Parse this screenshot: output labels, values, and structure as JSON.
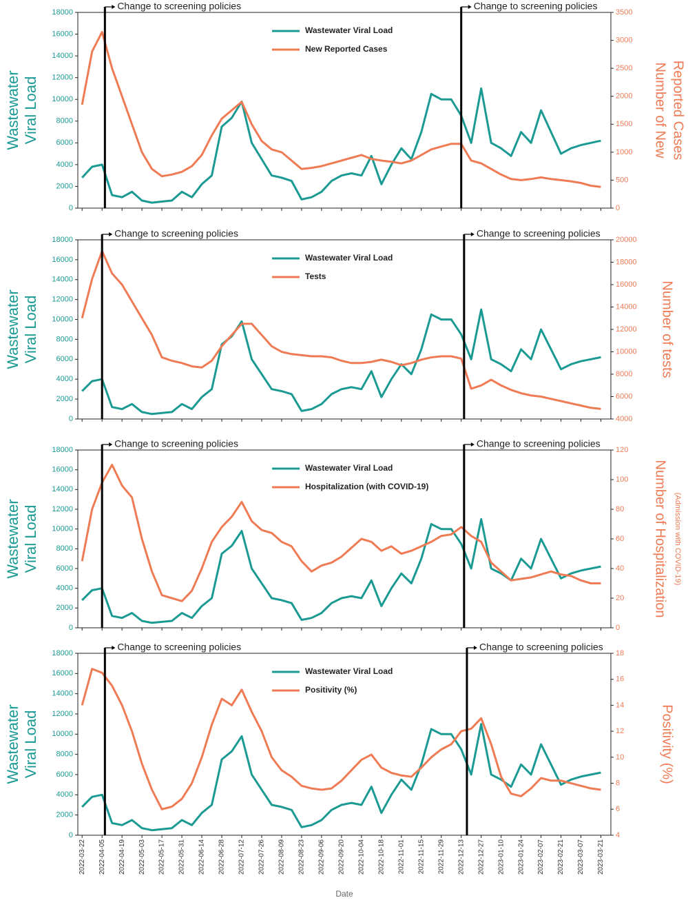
{
  "chart_data": [
    {
      "type": "line",
      "x": [
        "2022-03-22",
        "2022-03-29",
        "2022-04-05",
        "2022-04-12",
        "2022-04-19",
        "2022-04-26",
        "2022-05-03",
        "2022-05-10",
        "2022-05-17",
        "2022-05-24",
        "2022-05-31",
        "2022-06-07",
        "2022-06-14",
        "2022-06-21",
        "2022-06-28",
        "2022-07-05",
        "2022-07-12",
        "2022-07-19",
        "2022-07-26",
        "2022-08-02",
        "2022-08-09",
        "2022-08-16",
        "2022-08-23",
        "2022-08-30",
        "2022-09-06",
        "2022-09-13",
        "2022-09-20",
        "2022-09-27",
        "2022-10-04",
        "2022-10-11",
        "2022-10-18",
        "2022-10-25",
        "2022-11-01",
        "2022-11-08",
        "2022-11-15",
        "2022-11-22",
        "2022-11-29",
        "2022-12-06",
        "2022-12-13",
        "2022-12-20",
        "2022-12-27",
        "2023-01-03",
        "2023-01-10",
        "2023-01-17",
        "2023-01-24",
        "2023-01-31",
        "2023-02-07",
        "2023-02-14",
        "2023-02-21",
        "2023-02-28",
        "2023-03-07",
        "2023-03-14",
        "2023-03-21"
      ],
      "xlim": [
        "2022-03-19",
        "2023-03-28"
      ],
      "xticks": [
        "2022-03-22",
        "2022-04-05",
        "2022-04-19",
        "2022-05-03",
        "2022-05-17",
        "2022-05-31",
        "2022-06-14",
        "2022-06-28",
        "2022-07-12",
        "2022-07-26",
        "2022-08-09",
        "2022-08-23",
        "2022-09-06",
        "2022-09-20",
        "2022-10-04",
        "2022-10-18",
        "2022-11-01",
        "2022-11-15",
        "2022-11-29",
        "2022-12-13",
        "2022-12-27",
        "2023-01-10",
        "2023-01-24",
        "2023-02-07",
        "2023-02-21",
        "2023-03-07",
        "2023-03-21"
      ],
      "ylabel": [
        "Wastewater",
        "Viral Load"
      ],
      "y2label": [
        "Number of New",
        "Reported Cases"
      ],
      "ylim": [
        0,
        18000
      ],
      "yticks": [
        0,
        2000,
        4000,
        6000,
        8000,
        10000,
        12000,
        14000,
        16000,
        18000
      ],
      "y2lim": [
        0,
        3500
      ],
      "y2ticks": [
        0,
        500,
        1000,
        1500,
        2000,
        2500,
        3000,
        3500
      ],
      "legend": "top",
      "annotations": [
        {
          "x": "2022-04-07",
          "text": "Change to screening policies"
        },
        {
          "x": "2022-12-13",
          "text": "Change to screening policies"
        }
      ],
      "series": [
        {
          "name": "Wastewater Viral Load",
          "color": "#1a9a93",
          "values": [
            2800,
            3800,
            4000,
            1200,
            1000,
            1500,
            700,
            500,
            600,
            700,
            1500,
            1000,
            2200,
            3000,
            7500,
            8300,
            9800,
            6000,
            4500,
            3000,
            2800,
            2500,
            800,
            1000,
            1500,
            2500,
            3000,
            3200,
            3000,
            4800,
            2200,
            4000,
            5500,
            4500,
            7000,
            10500,
            10000,
            10000,
            8500,
            6000,
            11000,
            6000,
            5500,
            4800,
            7000,
            6000,
            9000,
            7000,
            5000,
            5500,
            5800,
            6000,
            6200
          ]
        },
        {
          "name": "New Reported Cases",
          "color": "#ef7b55",
          "axis": "y2",
          "values": [
            1850,
            2800,
            3150,
            2500,
            2000,
            1500,
            1000,
            700,
            570,
            600,
            650,
            750,
            950,
            1300,
            1600,
            1750,
            1900,
            1500,
            1200,
            1050,
            1000,
            850,
            700,
            720,
            750,
            800,
            850,
            900,
            950,
            880,
            850,
            830,
            800,
            850,
            950,
            1050,
            1100,
            1150,
            1150,
            850,
            800,
            700,
            600,
            520,
            500,
            520,
            550,
            520,
            500,
            480,
            450,
            400,
            380
          ]
        }
      ]
    },
    {
      "type": "line",
      "x": [
        "2022-03-22",
        "2022-03-29",
        "2022-04-05",
        "2022-04-12",
        "2022-04-19",
        "2022-04-26",
        "2022-05-03",
        "2022-05-10",
        "2022-05-17",
        "2022-05-24",
        "2022-05-31",
        "2022-06-07",
        "2022-06-14",
        "2022-06-21",
        "2022-06-28",
        "2022-07-05",
        "2022-07-12",
        "2022-07-19",
        "2022-07-26",
        "2022-08-02",
        "2022-08-09",
        "2022-08-16",
        "2022-08-23",
        "2022-08-30",
        "2022-09-06",
        "2022-09-13",
        "2022-09-20",
        "2022-09-27",
        "2022-10-04",
        "2022-10-11",
        "2022-10-18",
        "2022-10-25",
        "2022-11-01",
        "2022-11-08",
        "2022-11-15",
        "2022-11-22",
        "2022-11-29",
        "2022-12-06",
        "2022-12-13",
        "2022-12-20",
        "2022-12-27",
        "2023-01-03",
        "2023-01-10",
        "2023-01-17",
        "2023-01-24",
        "2023-01-31",
        "2023-02-07",
        "2023-02-14",
        "2023-02-21",
        "2023-02-28",
        "2023-03-07",
        "2023-03-14",
        "2023-03-21"
      ],
      "xlim": [
        "2022-03-19",
        "2023-03-28"
      ],
      "xticks": [
        "2022-03-22",
        "2022-04-05",
        "2022-04-19",
        "2022-05-03",
        "2022-05-17",
        "2022-05-31",
        "2022-06-14",
        "2022-06-28",
        "2022-07-12",
        "2022-07-26",
        "2022-08-09",
        "2022-08-23",
        "2022-09-06",
        "2022-09-20",
        "2022-10-04",
        "2022-10-18",
        "2022-11-01",
        "2022-11-15",
        "2022-11-29",
        "2022-12-13",
        "2022-12-27",
        "2023-01-10",
        "2023-01-24",
        "2023-02-07",
        "2023-02-21",
        "2023-03-07",
        "2023-03-21"
      ],
      "ylabel": [
        "Wastewater",
        "Viral Load"
      ],
      "y2label": [
        "Number of tests"
      ],
      "ylim": [
        0,
        18000
      ],
      "yticks": [
        0,
        2000,
        4000,
        6000,
        8000,
        10000,
        12000,
        14000,
        16000,
        18000
      ],
      "y2lim": [
        4000,
        20000
      ],
      "y2ticks": [
        4000,
        6000,
        8000,
        10000,
        12000,
        14000,
        16000,
        18000,
        20000
      ],
      "legend": "top",
      "annotations": [
        {
          "x": "2022-04-05",
          "text": "Change to screening policies"
        },
        {
          "x": "2022-12-15",
          "text": "Change to screening policies"
        }
      ],
      "series": [
        {
          "name": "Wastewater Viral Load",
          "color": "#1a9a93",
          "values": [
            2800,
            3800,
            4000,
            1200,
            1000,
            1500,
            700,
            500,
            600,
            700,
            1500,
            1000,
            2200,
            3000,
            7500,
            8300,
            9800,
            6000,
            4500,
            3000,
            2800,
            2500,
            800,
            1000,
            1500,
            2500,
            3000,
            3200,
            3000,
            4800,
            2200,
            4000,
            5500,
            4500,
            7000,
            10500,
            10000,
            10000,
            8500,
            6000,
            11000,
            6000,
            5500,
            4800,
            7000,
            6000,
            9000,
            7000,
            5000,
            5500,
            5800,
            6000,
            6200
          ]
        },
        {
          "name": "Tests",
          "color": "#ef7b55",
          "axis": "y2",
          "values": [
            13000,
            16500,
            19000,
            17000,
            16000,
            14500,
            13000,
            11500,
            9500,
            9200,
            9000,
            8700,
            8600,
            9200,
            10500,
            11500,
            12500,
            12500,
            11500,
            10500,
            10000,
            9800,
            9700,
            9600,
            9600,
            9500,
            9200,
            9000,
            9000,
            9100,
            9300,
            9100,
            8800,
            9000,
            9300,
            9500,
            9600,
            9600,
            9400,
            6700,
            7000,
            7500,
            7000,
            6600,
            6300,
            6100,
            6000,
            5800,
            5600,
            5400,
            5200,
            5000,
            4900
          ]
        }
      ]
    },
    {
      "type": "line",
      "x": [
        "2022-03-22",
        "2022-03-29",
        "2022-04-05",
        "2022-04-12",
        "2022-04-19",
        "2022-04-26",
        "2022-05-03",
        "2022-05-10",
        "2022-05-17",
        "2022-05-24",
        "2022-05-31",
        "2022-06-07",
        "2022-06-14",
        "2022-06-21",
        "2022-06-28",
        "2022-07-05",
        "2022-07-12",
        "2022-07-19",
        "2022-07-26",
        "2022-08-02",
        "2022-08-09",
        "2022-08-16",
        "2022-08-23",
        "2022-08-30",
        "2022-09-06",
        "2022-09-13",
        "2022-09-20",
        "2022-09-27",
        "2022-10-04",
        "2022-10-11",
        "2022-10-18",
        "2022-10-25",
        "2022-11-01",
        "2022-11-08",
        "2022-11-15",
        "2022-11-22",
        "2022-11-29",
        "2022-12-06",
        "2022-12-13",
        "2022-12-20",
        "2022-12-27",
        "2023-01-03",
        "2023-01-10",
        "2023-01-17",
        "2023-01-24",
        "2023-01-31",
        "2023-02-07",
        "2023-02-14",
        "2023-02-21",
        "2023-02-28",
        "2023-03-07",
        "2023-03-14",
        "2023-03-21"
      ],
      "xlim": [
        "2022-03-19",
        "2023-03-28"
      ],
      "xticks": [
        "2022-03-22",
        "2022-04-05",
        "2022-04-19",
        "2022-05-03",
        "2022-05-17",
        "2022-05-31",
        "2022-06-14",
        "2022-06-28",
        "2022-07-12",
        "2022-07-26",
        "2022-08-09",
        "2022-08-23",
        "2022-09-06",
        "2022-09-20",
        "2022-10-04",
        "2022-10-18",
        "2022-11-01",
        "2022-11-15",
        "2022-11-29",
        "2022-12-13",
        "2022-12-27",
        "2023-01-10",
        "2023-01-24",
        "2023-02-07",
        "2023-02-21",
        "2023-03-07",
        "2023-03-21"
      ],
      "ylabel": [
        "Wastewater",
        "Viral Load"
      ],
      "y2label": [
        "Number of Hospitalization"
      ],
      "y2sublabel": "(Admission with COVID-19)",
      "ylim": [
        0,
        18000
      ],
      "yticks": [
        0,
        2000,
        4000,
        6000,
        8000,
        10000,
        12000,
        14000,
        16000,
        18000
      ],
      "y2lim": [
        0,
        120
      ],
      "y2ticks": [
        0,
        20,
        40,
        60,
        80,
        100,
        120
      ],
      "legend": "top",
      "annotations": [
        {
          "x": "2022-04-05",
          "text": "Change to screening policies"
        },
        {
          "x": "2022-12-15",
          "text": "Change to screening policies"
        }
      ],
      "series": [
        {
          "name": "Wastewater Viral Load",
          "color": "#1a9a93",
          "values": [
            2800,
            3800,
            4000,
            1200,
            1000,
            1500,
            700,
            500,
            600,
            700,
            1500,
            1000,
            2200,
            3000,
            7500,
            8300,
            9800,
            6000,
            4500,
            3000,
            2800,
            2500,
            800,
            1000,
            1500,
            2500,
            3000,
            3200,
            3000,
            4800,
            2200,
            4000,
            5500,
            4500,
            7000,
            10500,
            10000,
            10000,
            8500,
            6000,
            11000,
            6000,
            5500,
            4800,
            7000,
            6000,
            9000,
            7000,
            5000,
            5500,
            5800,
            6000,
            6200
          ]
        },
        {
          "name": "Hospitalization (with COVID-19)",
          "color": "#ef7b55",
          "axis": "y2",
          "values": [
            45,
            80,
            98,
            110,
            96,
            88,
            60,
            38,
            22,
            20,
            18,
            25,
            40,
            58,
            68,
            75,
            85,
            72,
            66,
            64,
            58,
            55,
            45,
            38,
            42,
            44,
            48,
            54,
            60,
            58,
            52,
            55,
            50,
            52,
            55,
            58,
            62,
            63,
            68,
            62,
            58,
            44,
            38,
            32,
            33,
            34,
            36,
            38,
            36,
            35,
            32,
            30,
            30
          ]
        }
      ]
    },
    {
      "type": "line",
      "x": [
        "2022-03-22",
        "2022-03-29",
        "2022-04-05",
        "2022-04-12",
        "2022-04-19",
        "2022-04-26",
        "2022-05-03",
        "2022-05-10",
        "2022-05-17",
        "2022-05-24",
        "2022-05-31",
        "2022-06-07",
        "2022-06-14",
        "2022-06-21",
        "2022-06-28",
        "2022-07-05",
        "2022-07-12",
        "2022-07-19",
        "2022-07-26",
        "2022-08-02",
        "2022-08-09",
        "2022-08-16",
        "2022-08-23",
        "2022-08-30",
        "2022-09-06",
        "2022-09-13",
        "2022-09-20",
        "2022-09-27",
        "2022-10-04",
        "2022-10-11",
        "2022-10-18",
        "2022-10-25",
        "2022-11-01",
        "2022-11-08",
        "2022-11-15",
        "2022-11-22",
        "2022-11-29",
        "2022-12-06",
        "2022-12-13",
        "2022-12-20",
        "2022-12-27",
        "2023-01-03",
        "2023-01-10",
        "2023-01-17",
        "2023-01-24",
        "2023-01-31",
        "2023-02-07",
        "2023-02-14",
        "2023-02-21",
        "2023-02-28",
        "2023-03-07",
        "2023-03-14",
        "2023-03-21"
      ],
      "xlim": [
        "2022-03-19",
        "2023-03-28"
      ],
      "xticks": [
        "2022-03-22",
        "2022-04-05",
        "2022-04-19",
        "2022-05-03",
        "2022-05-17",
        "2022-05-31",
        "2022-06-14",
        "2022-06-28",
        "2022-07-12",
        "2022-07-26",
        "2022-08-09",
        "2022-08-23",
        "2022-09-06",
        "2022-09-20",
        "2022-10-04",
        "2022-10-18",
        "2022-11-01",
        "2022-11-15",
        "2022-11-29",
        "2022-12-13",
        "2022-12-27",
        "2023-01-10",
        "2023-01-24",
        "2023-02-07",
        "2023-02-21",
        "2023-03-07",
        "2023-03-21"
      ],
      "xlabel": "Date",
      "ylabel": [
        "Wastewater",
        "Viral Load"
      ],
      "y2label": [
        "Positivity (%)"
      ],
      "ylim": [
        0,
        18000
      ],
      "yticks": [
        0,
        2000,
        4000,
        6000,
        8000,
        10000,
        12000,
        14000,
        16000,
        18000
      ],
      "y2lim": [
        4,
        18
      ],
      "y2ticks": [
        4,
        6,
        8,
        10,
        12,
        14,
        16,
        18
      ],
      "legend": "top",
      "annotations": [
        {
          "x": "2022-04-07",
          "text": "Change to screening policies"
        },
        {
          "x": "2022-12-17",
          "text": "Change to screening policies"
        }
      ],
      "series": [
        {
          "name": "Wastewater Viral Load",
          "color": "#1a9a93",
          "values": [
            2800,
            3800,
            4000,
            1200,
            1000,
            1500,
            700,
            500,
            600,
            700,
            1500,
            1000,
            2200,
            3000,
            7500,
            8300,
            9800,
            6000,
            4500,
            3000,
            2800,
            2500,
            800,
            1000,
            1500,
            2500,
            3000,
            3200,
            3000,
            4800,
            2200,
            4000,
            5500,
            4500,
            7000,
            10500,
            10000,
            10000,
            8500,
            6000,
            11000,
            6000,
            5500,
            4800,
            7000,
            6000,
            9000,
            7000,
            5000,
            5500,
            5800,
            6000,
            6200
          ]
        },
        {
          "name": "Positivity (%)",
          "color": "#ef7b55",
          "axis": "y2",
          "values": [
            14,
            16.8,
            16.5,
            15.5,
            14,
            12,
            9.5,
            7.5,
            6,
            6.2,
            6.8,
            8,
            10,
            12.5,
            14.5,
            14,
            15.2,
            13.5,
            12,
            10,
            9,
            8.5,
            7.8,
            7.6,
            7.5,
            7.6,
            8.2,
            9,
            9.8,
            10.2,
            9.2,
            8.8,
            8.6,
            8.5,
            9.2,
            10,
            10.6,
            11,
            12,
            12.2,
            13,
            11,
            8.5,
            7.2,
            7,
            7.6,
            8.4,
            8.2,
            8.2,
            8,
            7.8,
            7.6,
            7.5
          ]
        }
      ]
    }
  ]
}
